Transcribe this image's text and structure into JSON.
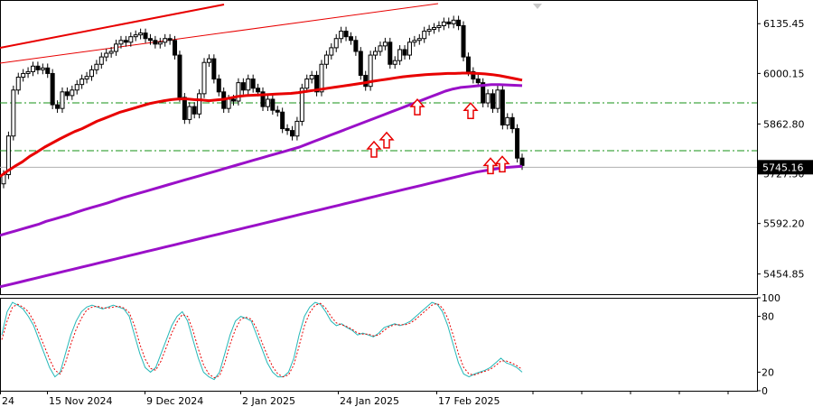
{
  "chart_data": [
    {
      "type": "candlestick",
      "panel": "price",
      "ylim": [
        5400,
        6190
      ],
      "y_ticks": [
        "6135.45",
        "6000.15",
        "5862.80",
        "5727.50",
        "5592.20",
        "5454.85"
      ],
      "current_price_label": "5745.16",
      "x_labels": [
        "24",
        "15 Nov 2024",
        "9 Dec 2024",
        "2 Jan 2025",
        "24 Jan 2025",
        "17 Feb 2025"
      ],
      "closes": [
        5725,
        5830,
        5955,
        5990,
        6000,
        6005,
        6020,
        6010,
        6015,
        6000,
        5915,
        5905,
        5950,
        5940,
        5955,
        5970,
        5985,
        5992,
        6010,
        6025,
        6045,
        6055,
        6060,
        6080,
        6090,
        6085,
        6100,
        6105,
        6110,
        6095,
        6090,
        6080,
        6085,
        6095,
        6090,
        6050,
        5935,
        5875,
        5910,
        5890,
        5945,
        6030,
        6040,
        5985,
        5950,
        5905,
        5930,
        5925,
        5975,
        5955,
        5985,
        5960,
        5950,
        5910,
        5930,
        5900,
        5895,
        5850,
        5845,
        5830,
        5870,
        5960,
        5985,
        5995,
        5950,
        6025,
        6050,
        6070,
        6095,
        6115,
        6100,
        6090,
        6060,
        5995,
        5965,
        6050,
        6060,
        6075,
        6085,
        6025,
        6035,
        6065,
        6050,
        6085,
        6090,
        6095,
        6115,
        6120,
        6125,
        6130,
        6140,
        6135,
        6145,
        6130,
        6045,
        6005,
        5985,
        5975,
        5920,
        5945,
        5905,
        5955,
        5860,
        5880,
        5850,
        5770,
        5750
      ],
      "series": [
        {
          "values": [
            5720,
            5735,
            5748,
            5760,
            5775,
            5787,
            5800,
            5811,
            5822,
            5832,
            5842,
            5850,
            5860,
            5870,
            5878,
            5886,
            5894,
            5900,
            5906,
            5912,
            5918,
            5922,
            5926,
            5929,
            5931,
            5931,
            5929,
            5928,
            5926,
            5928,
            5930,
            5934,
            5938,
            5940,
            5941,
            5942,
            5943,
            5944,
            5945,
            5946,
            5948,
            5951,
            5954,
            5957,
            5960,
            5963,
            5966,
            5969,
            5972,
            5975,
            5979,
            5982,
            5985,
            5988,
            5991,
            5993,
            5995,
            5997,
            5998,
            5999,
            6000,
            6000,
            6001,
            6001,
            6000,
            5999,
            5997,
            5994,
            5990,
            5986,
            5982
          ]
        },
        {
          "values": [
            5420,
            5426,
            5432,
            5438,
            5444,
            5450,
            5456,
            5462,
            5468,
            5474,
            5480,
            5486,
            5492,
            5498,
            5504,
            5510,
            5516,
            5522,
            5528,
            5534,
            5540,
            5546,
            5552,
            5558,
            5564,
            5570,
            5576,
            5582,
            5588,
            5594,
            5600,
            5606,
            5612,
            5618,
            5624,
            5630,
            5636,
            5642,
            5648,
            5654,
            5660,
            5666,
            5672,
            5678,
            5684,
            5690,
            5696,
            5702,
            5708,
            5714,
            5720,
            5726,
            5732,
            5736,
            5740,
            5744,
            5746,
            5748
          ]
        },
        {
          "values": [
            5560,
            5566,
            5572,
            5578,
            5584,
            5590,
            5598,
            5604,
            5610,
            5616,
            5623,
            5630,
            5636,
            5642,
            5648,
            5655,
            5662,
            5668,
            5674,
            5680,
            5686,
            5692,
            5698,
            5704,
            5710,
            5716,
            5722,
            5728,
            5734,
            5740,
            5746,
            5752,
            5758,
            5764,
            5770,
            5776,
            5782,
            5788,
            5794,
            5800,
            5808,
            5816,
            5824,
            5832,
            5840,
            5848,
            5856,
            5864,
            5872,
            5880,
            5888,
            5896,
            5904,
            5912,
            5920,
            5928,
            5936,
            5944,
            5952,
            5958,
            5962,
            5964,
            5966,
            5968,
            5970,
            5970,
            5969,
            5968,
            5967
          ]
        },
        {
          "values": [
            5920,
            5920
          ]
        },
        {
          "values": [
            5790,
            5790
          ]
        }
      ],
      "arrow_marks": [
        5790,
        5815,
        5905,
        5895,
        5745,
        5750
      ]
    },
    {
      "type": "line",
      "panel": "stochastic",
      "ylim": [
        0,
        100
      ],
      "y_ticks": [
        "100",
        "80",
        "20",
        "0"
      ],
      "series": [
        {
          "values": [
            60,
            85,
            95,
            92,
            88,
            80,
            70,
            55,
            40,
            25,
            15,
            20,
            40,
            60,
            75,
            85,
            90,
            92,
            90,
            88,
            90,
            92,
            90,
            88,
            80,
            60,
            40,
            25,
            20,
            25,
            40,
            55,
            70,
            80,
            85,
            75,
            55,
            35,
            20,
            15,
            12,
            20,
            40,
            60,
            75,
            80,
            78,
            75,
            60,
            45,
            30,
            20,
            15,
            15,
            20,
            35,
            60,
            80,
            90,
            95,
            93,
            85,
            75,
            70,
            72,
            68,
            65,
            60,
            62,
            60,
            58,
            62,
            68,
            70,
            72,
            70,
            72,
            75,
            80,
            85,
            90,
            95,
            93,
            85,
            70,
            50,
            30,
            18,
            15,
            18,
            20,
            22,
            25,
            30,
            35,
            30,
            28,
            25,
            20
          ]
        },
        {
          "values": [
            55,
            75,
            90,
            93,
            90,
            85,
            75,
            62,
            48,
            34,
            22,
            18,
            30,
            50,
            66,
            78,
            87,
            90,
            91,
            89,
            89,
            90,
            91,
            89,
            84,
            70,
            50,
            34,
            24,
            22,
            32,
            47,
            62,
            74,
            82,
            80,
            65,
            45,
            28,
            18,
            14,
            16,
            30,
            50,
            66,
            77,
            79,
            77,
            67,
            52,
            38,
            26,
            18,
            15,
            17,
            28,
            48,
            70,
            84,
            92,
            94,
            89,
            80,
            73,
            71,
            69,
            66,
            62,
            61,
            61,
            59,
            60,
            65,
            69,
            71,
            71,
            71,
            73,
            77,
            82,
            87,
            92,
            94,
            89,
            78,
            60,
            40,
            25,
            18,
            17,
            19,
            21,
            23,
            27,
            32,
            32,
            30,
            27,
            23
          ]
        }
      ]
    }
  ],
  "colors": {
    "bull_candle": "#ffffff",
    "bear_candle": "#000000",
    "ma_red": "#e80000",
    "ma_purple": "#9a10c8",
    "trend_lines": "#e80000",
    "level_lines": "#169016",
    "stoch_main": "#25b8b8",
    "stoch_signal": "#e80000",
    "arrows": "#e80000",
    "price_badge_bg": "#000000",
    "price_badge_text": "#ffffff"
  }
}
